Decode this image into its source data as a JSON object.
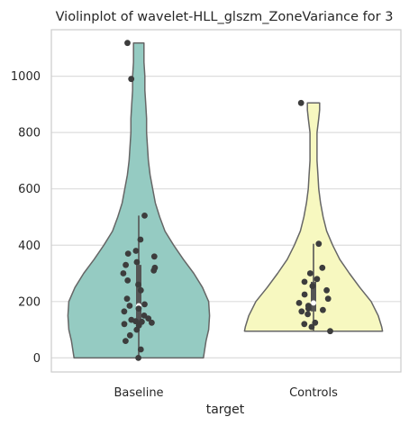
{
  "chart_data": {
    "type": "violin",
    "title": "Violinplot of wavelet-HLL_glszm_ZoneVariance for 3",
    "xlabel": "target",
    "ylabel": "",
    "categories": [
      "Baseline",
      "Controls"
    ],
    "yticks": [
      0,
      200,
      400,
      600,
      800,
      1000
    ],
    "ylim": [
      -50,
      1165
    ],
    "grid": "horizontal",
    "colors": {
      "Baseline": "#95cbc2",
      "Controls": "#f7f8c0",
      "outline": "#666666",
      "points": "#3d3d3d",
      "grid": "#dddddd",
      "box": "#555555"
    },
    "violins": [
      {
        "name": "Baseline",
        "profile": [
          [
            0,
            0.74
          ],
          [
            60,
            0.77
          ],
          [
            100,
            0.8
          ],
          [
            150,
            0.81
          ],
          [
            200,
            0.8
          ],
          [
            250,
            0.73
          ],
          [
            300,
            0.63
          ],
          [
            350,
            0.51
          ],
          [
            400,
            0.4
          ],
          [
            450,
            0.3
          ],
          [
            500,
            0.24
          ],
          [
            550,
            0.19
          ],
          [
            600,
            0.16
          ],
          [
            650,
            0.13
          ],
          [
            700,
            0.11
          ],
          [
            750,
            0.1
          ],
          [
            800,
            0.09
          ],
          [
            850,
            0.09
          ],
          [
            900,
            0.08
          ],
          [
            950,
            0.07
          ],
          [
            1000,
            0.07
          ],
          [
            1050,
            0.06
          ],
          [
            1100,
            0.06
          ],
          [
            1118,
            0.06
          ]
        ],
        "box": {
          "whisker_low": 0,
          "q1": 130,
          "median": 185,
          "q3": 330,
          "whisker_high": 505
        },
        "points": [
          0,
          30,
          60,
          80,
          100,
          115,
          120,
          125,
          128,
          130,
          135,
          140,
          150,
          165,
          175,
          185,
          190,
          210,
          240,
          260,
          275,
          300,
          310,
          320,
          330,
          340,
          360,
          370,
          380,
          420,
          505,
          990,
          1118
        ]
      },
      {
        "name": "Controls",
        "profile": [
          [
            95,
            0.79
          ],
          [
            110,
            0.78
          ],
          [
            150,
            0.74
          ],
          [
            200,
            0.66
          ],
          [
            250,
            0.53
          ],
          [
            300,
            0.41
          ],
          [
            350,
            0.3
          ],
          [
            400,
            0.22
          ],
          [
            450,
            0.15
          ],
          [
            500,
            0.11
          ],
          [
            550,
            0.08
          ],
          [
            600,
            0.06
          ],
          [
            650,
            0.05
          ],
          [
            700,
            0.04
          ],
          [
            750,
            0.04
          ],
          [
            800,
            0.04
          ],
          [
            850,
            0.06
          ],
          [
            880,
            0.07
          ],
          [
            905,
            0.07
          ]
        ],
        "box": {
          "whisker_low": 95,
          "q1": 165,
          "median": 195,
          "q3": 270,
          "whisker_high": 405
        },
        "points": [
          95,
          110,
          120,
          125,
          155,
          165,
          170,
          175,
          185,
          195,
          210,
          225,
          240,
          255,
          270,
          280,
          300,
          320,
          405,
          905
        ]
      }
    ]
  }
}
